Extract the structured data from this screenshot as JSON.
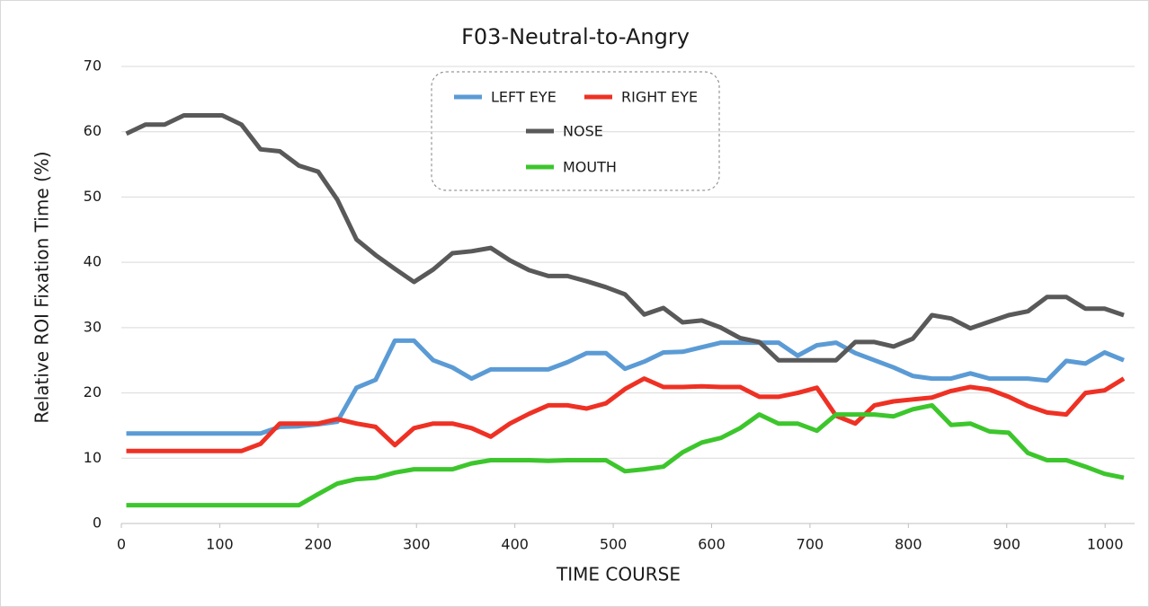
{
  "chart_data": {
    "type": "line",
    "title": "F03-Neutral-to-Angry",
    "x_label": "TIME  COURSE",
    "y_label": "Relative  ROI  Fixation  Time  (%)",
    "x": [
      5,
      24.5,
      44,
      63.5,
      83,
      102.5,
      122,
      141.5,
      161,
      180.5,
      200,
      219.5,
      239,
      258.5,
      278,
      297.5,
      317,
      336.5,
      356,
      375.5,
      395,
      414.5,
      434,
      453.5,
      473,
      492.5,
      512,
      531.5,
      551,
      570.5,
      590,
      609.5,
      629,
      648.5,
      668,
      687.5,
      707,
      726.5,
      746,
      765.5,
      785,
      804.5,
      824,
      843.5,
      863,
      882.5,
      902,
      921.5,
      941,
      960.5,
      980,
      999.5,
      1019
    ],
    "series": [
      {
        "name": "LEFT EYE",
        "color": "#5b9bd5",
        "values": [
          13.8,
          13.8,
          13.8,
          13.8,
          13.8,
          13.8,
          13.8,
          13.8,
          14.8,
          14.9,
          15.2,
          15.6,
          20.8,
          22.0,
          28.0,
          28.0,
          25.0,
          23.9,
          22.2,
          23.6,
          23.6,
          23.6,
          23.6,
          24.7,
          26.1,
          26.1,
          23.7,
          24.8,
          26.2,
          26.3,
          27.0,
          27.7,
          27.7,
          27.7,
          27.7,
          25.7,
          27.3,
          27.7,
          26.1,
          25.0,
          23.9,
          22.6,
          22.2,
          22.2,
          23.0,
          22.2,
          22.2,
          22.2,
          21.9,
          24.9,
          24.5,
          26.2,
          25.0
        ]
      },
      {
        "name": "RIGHT EYE",
        "color": "#ee3124",
        "values": [
          11.1,
          11.1,
          11.1,
          11.1,
          11.1,
          11.1,
          11.1,
          12.2,
          15.3,
          15.3,
          15.3,
          16.0,
          15.3,
          14.8,
          12.0,
          14.6,
          15.3,
          15.3,
          14.6,
          13.3,
          15.3,
          16.8,
          18.1,
          18.1,
          17.6,
          18.4,
          20.6,
          22.2,
          20.9,
          20.9,
          21.0,
          20.9,
          20.9,
          19.4,
          19.4,
          20.0,
          20.8,
          16.5,
          15.3,
          18.1,
          18.7,
          19.0,
          19.3,
          20.3,
          20.9,
          20.5,
          19.4,
          18.0,
          17.0,
          16.7,
          20.0,
          20.4,
          22.2
        ]
      },
      {
        "name": "NOSE",
        "color": "#595959",
        "values": [
          59.7,
          61.1,
          61.1,
          62.5,
          62.5,
          62.5,
          61.1,
          57.3,
          57.0,
          54.8,
          53.9,
          49.6,
          43.5,
          41.1,
          39.0,
          37.0,
          38.9,
          41.4,
          41.7,
          42.2,
          40.3,
          38.8,
          37.9,
          37.9,
          37.1,
          36.2,
          35.1,
          32.0,
          33.0,
          30.8,
          31.1,
          30.0,
          28.4,
          27.8,
          25.0,
          25.0,
          25.0,
          25.0,
          27.8,
          27.8,
          27.1,
          28.3,
          31.9,
          31.4,
          29.9,
          30.9,
          31.9,
          32.5,
          34.7,
          34.7,
          32.9,
          32.9,
          31.9
        ]
      },
      {
        "name": "MOUTH",
        "color": "#3cc62c",
        "values": [
          2.8,
          2.8,
          2.8,
          2.8,
          2.8,
          2.8,
          2.8,
          2.8,
          2.8,
          2.8,
          4.5,
          6.1,
          6.8,
          7.0,
          7.8,
          8.3,
          8.3,
          8.3,
          9.2,
          9.7,
          9.7,
          9.7,
          9.6,
          9.7,
          9.7,
          9.7,
          8.0,
          8.3,
          8.7,
          10.9,
          12.4,
          13.1,
          14.6,
          16.7,
          15.3,
          15.3,
          14.2,
          16.7,
          16.7,
          16.7,
          16.4,
          17.5,
          18.1,
          15.1,
          15.3,
          14.1,
          13.9,
          10.8,
          9.7,
          9.7,
          8.7,
          7.6,
          7.0
        ]
      }
    ],
    "xlim": [
      0,
      1030
    ],
    "xticks": [
      0,
      100,
      200,
      300,
      400,
      500,
      600,
      700,
      800,
      900,
      1000
    ],
    "ylim": [
      0,
      70
    ],
    "yticks": [
      0,
      10,
      20,
      30,
      40,
      50,
      60,
      70
    ],
    "grid": true
  }
}
